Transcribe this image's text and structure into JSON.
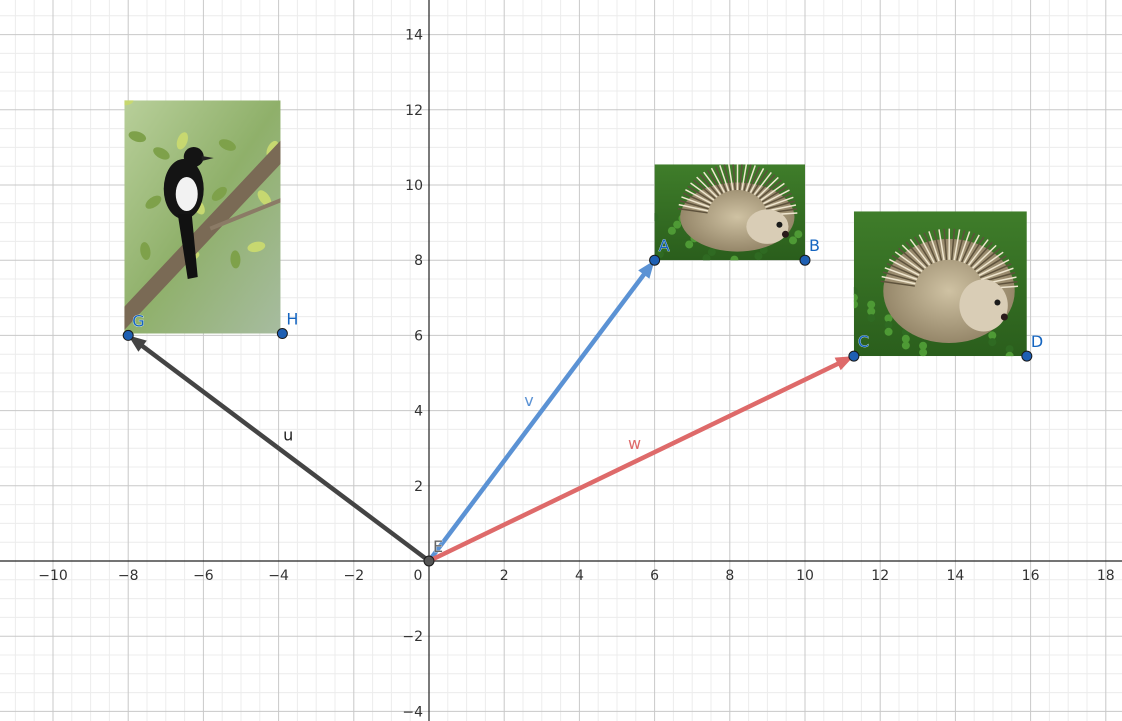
{
  "chart_data": {
    "type": "scatter",
    "xlim": [
      -11.3,
      18.5
    ],
    "ylim": [
      -4.2,
      15
    ],
    "grid": true,
    "x_ticks": [
      -10,
      -8,
      -6,
      -4,
      -2,
      0,
      2,
      4,
      6,
      8,
      10,
      12,
      14,
      16,
      18
    ],
    "y_ticks": [
      -4,
      -2,
      2,
      4,
      6,
      8,
      10,
      12,
      14
    ],
    "x_tick_labels": [
      "−10",
      "−8",
      "−6",
      "−4",
      "−2",
      "0",
      "2",
      "4",
      "6",
      "8",
      "10",
      "12",
      "14",
      "16",
      "18"
    ],
    "y_tick_labels": [
      "−4",
      "−2",
      "2",
      "4",
      "6",
      "8",
      "10",
      "12",
      "14"
    ],
    "points": [
      {
        "label": "E",
        "x": 0,
        "y": 0,
        "color": "#666666"
      },
      {
        "label": "A",
        "x": 6,
        "y": 8,
        "color": "#1565c0"
      },
      {
        "label": "B",
        "x": 10,
        "y": 8,
        "color": "#1565c0"
      },
      {
        "label": "C",
        "x": 11.3,
        "y": 5.45,
        "color": "#1565c0"
      },
      {
        "label": "D",
        "x": 15.9,
        "y": 5.45,
        "color": "#1565c0"
      },
      {
        "label": "G",
        "x": -8,
        "y": 6,
        "color": "#1565c0"
      },
      {
        "label": "H",
        "x": -3.9,
        "y": 6.05,
        "color": "#1565c0"
      }
    ],
    "vectors": [
      {
        "label": "u",
        "from": [
          0,
          0
        ],
        "to": [
          -8,
          6
        ],
        "color": "#444444"
      },
      {
        "label": "v",
        "from": [
          0,
          0
        ],
        "to": [
          6,
          8
        ],
        "color": "#5b92d4"
      },
      {
        "label": "w",
        "from": [
          0,
          0
        ],
        "to": [
          11.3,
          5.45
        ],
        "color": "#de6a6a"
      }
    ],
    "images": [
      {
        "subject": "magpie",
        "x0": -8.1,
        "y0": 6.05,
        "x1": -3.95,
        "y1": 12.25
      },
      {
        "subject": "hedgehog",
        "x0": 6,
        "y0": 8,
        "x1": 10,
        "y1": 10.55
      },
      {
        "subject": "hedgehog",
        "x0": 11.3,
        "y0": 5.45,
        "x1": 15.9,
        "y1": 9.3
      }
    ]
  }
}
